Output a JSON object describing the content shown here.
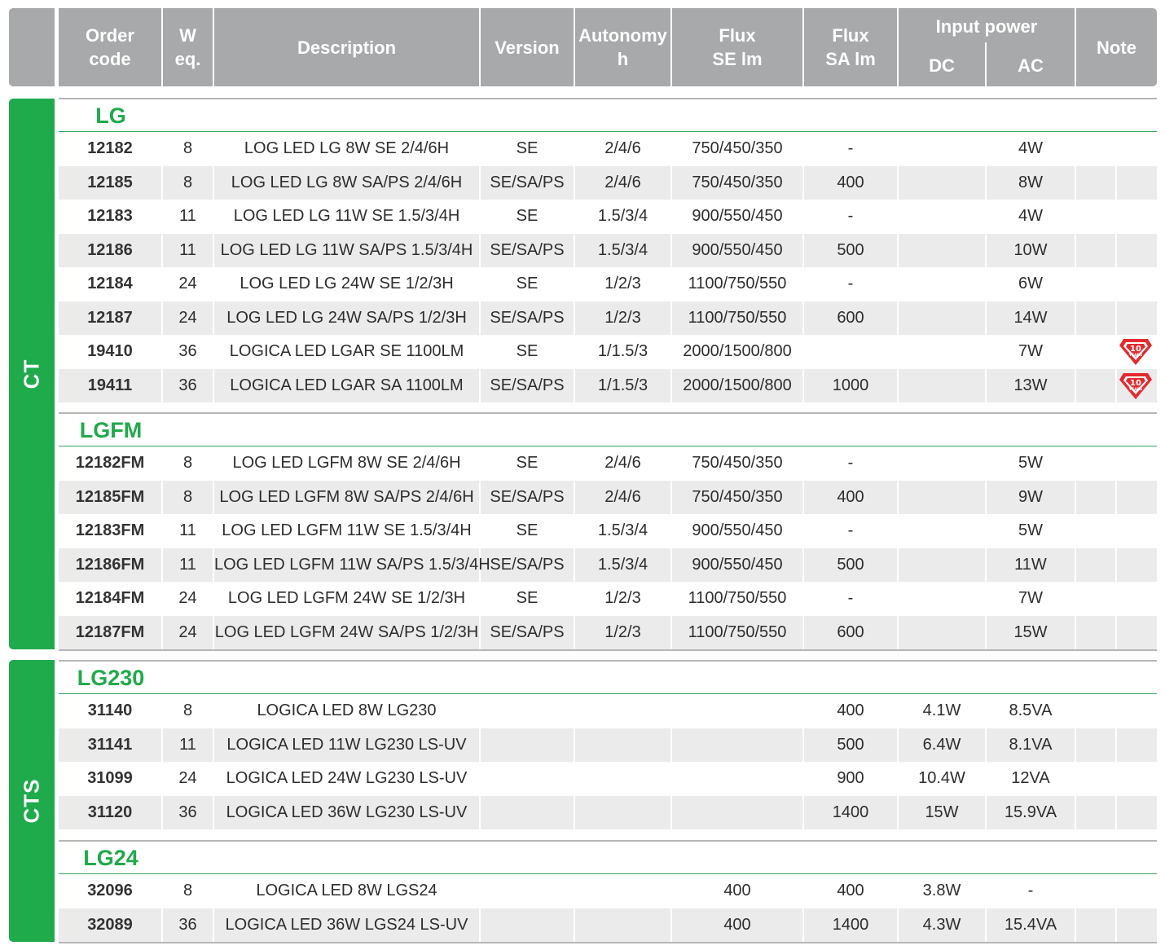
{
  "header": {
    "order_code": "Order\ncode",
    "w_eq": "W\neq.",
    "description": "Description",
    "version": "Version",
    "autonomy": "Autonomy\nh",
    "flux_se": "Flux\nSE lm",
    "flux_sa": "Flux\nSA lm",
    "input_power": "Input power",
    "dc": "DC",
    "ac": "AC",
    "note": "Note"
  },
  "sections": [
    {
      "label": "CT"
    },
    {
      "label": "CTS"
    }
  ],
  "groups": [
    {
      "title": "LG",
      "rows": [
        {
          "code": "12182",
          "w": "8",
          "desc": "LOG LED LG 8W SE 2/4/6H",
          "version": "SE",
          "autonomy": "2/4/6",
          "flux_se": "750/450/350",
          "flux_sa": "-",
          "dc": "",
          "ac": "4W",
          "note": ""
        },
        {
          "code": "12185",
          "w": "8",
          "desc": "LOG LED LG 8W SA/PS 2/4/6H",
          "version": "SE/SA/PS",
          "autonomy": "2/4/6",
          "flux_se": "750/450/350",
          "flux_sa": "400",
          "dc": "",
          "ac": "8W",
          "note": ""
        },
        {
          "code": "12183",
          "w": "11",
          "desc": "LOG LED LG 11W SE 1.5/3/4H",
          "version": "SE",
          "autonomy": "1.5/3/4",
          "flux_se": "900/550/450",
          "flux_sa": "-",
          "dc": "",
          "ac": "4W",
          "note": ""
        },
        {
          "code": "12186",
          "w": "11",
          "desc": "LOG LED LG 11W SA/PS 1.5/3/4H",
          "version": "SE/SA/PS",
          "autonomy": "1.5/3/4",
          "flux_se": "900/550/450",
          "flux_sa": "500",
          "dc": "",
          "ac": "10W",
          "note": ""
        },
        {
          "code": "12184",
          "w": "24",
          "desc": "LOG LED LG 24W SE 1/2/3H",
          "version": "SE",
          "autonomy": "1/2/3",
          "flux_se": "1100/750/550",
          "flux_sa": "-",
          "dc": "",
          "ac": "6W",
          "note": ""
        },
        {
          "code": "12187",
          "w": "24",
          "desc": "LOG LED LG 24W SA/PS 1/2/3H",
          "version": "SE/SA/PS",
          "autonomy": "1/2/3",
          "flux_se": "1100/750/550",
          "flux_sa": "600",
          "dc": "",
          "ac": "14W",
          "note": ""
        },
        {
          "code": "19410",
          "w": "36",
          "desc": "LOGICA LED LGAR SE 1100LM",
          "version": "SE",
          "autonomy": "1/1.5/3",
          "flux_se": "2000/1500/800",
          "flux_sa": "",
          "dc": "",
          "ac": "7W",
          "note": "10-years-badge"
        },
        {
          "code": "19411",
          "w": "36",
          "desc": "LOGICA LED LGAR SA 1100LM",
          "version": "SE/SA/PS",
          "autonomy": "1/1.5/3",
          "flux_se": "2000/1500/800",
          "flux_sa": "1000",
          "dc": "",
          "ac": "13W",
          "note": "10-years-badge"
        }
      ]
    },
    {
      "title": "LGFM",
      "rows": [
        {
          "code": "12182FM",
          "w": "8",
          "desc": "LOG LED LGFM 8W SE 2/4/6H",
          "version": "SE",
          "autonomy": "2/4/6",
          "flux_se": "750/450/350",
          "flux_sa": "-",
          "dc": "",
          "ac": "5W",
          "note": ""
        },
        {
          "code": "12185FM",
          "w": "8",
          "desc": "LOG LED LGFM 8W SA/PS 2/4/6H",
          "version": "SE/SA/PS",
          "autonomy": "2/4/6",
          "flux_se": "750/450/350",
          "flux_sa": "400",
          "dc": "",
          "ac": "9W",
          "note": ""
        },
        {
          "code": "12183FM",
          "w": "11",
          "desc": "LOG LED LGFM 11W SE 1.5/3/4H",
          "version": "SE",
          "autonomy": "1.5/3/4",
          "flux_se": "900/550/450",
          "flux_sa": "-",
          "dc": "",
          "ac": "5W",
          "note": ""
        },
        {
          "code": "12186FM",
          "w": "11",
          "desc": "LOG LED LGFM 11W SA/PS 1.5/3/4H",
          "version": "SE/SA/PS",
          "autonomy": "1.5/3/4",
          "flux_se": "900/550/450",
          "flux_sa": "500",
          "dc": "",
          "ac": "11W",
          "note": ""
        },
        {
          "code": "12184FM",
          "w": "24",
          "desc": "LOG LED LGFM 24W SE 1/2/3H",
          "version": "SE",
          "autonomy": "1/2/3",
          "flux_se": "1100/750/550",
          "flux_sa": "-",
          "dc": "",
          "ac": "7W",
          "note": ""
        },
        {
          "code": "12187FM",
          "w": "24",
          "desc": "LOG LED LGFM 24W SA/PS 1/2/3H",
          "version": "SE/SA/PS",
          "autonomy": "1/2/3",
          "flux_se": "1100/750/550",
          "flux_sa": "600",
          "dc": "",
          "ac": "15W",
          "note": ""
        }
      ]
    },
    {
      "title": "LG230",
      "rows": [
        {
          "code": "31140",
          "w": "8",
          "desc": "LOGICA LED 8W LG230",
          "version": "",
          "autonomy": "",
          "flux_se": "",
          "flux_sa": "400",
          "dc": "4.1W",
          "ac": "8.5VA",
          "note": ""
        },
        {
          "code": "31141",
          "w": "11",
          "desc": "LOGICA LED 11W LG230 LS-UV",
          "version": "",
          "autonomy": "",
          "flux_se": "",
          "flux_sa": "500",
          "dc": "6.4W",
          "ac": "8.1VA",
          "note": ""
        },
        {
          "code": "31099",
          "w": "24",
          "desc": "LOGICA LED 24W LG230 LS-UV",
          "version": "",
          "autonomy": "",
          "flux_se": "",
          "flux_sa": "900",
          "dc": "10.4W",
          "ac": "12VA",
          "note": ""
        },
        {
          "code": "31120",
          "w": "36",
          "desc": "LOGICA LED 36W LG230 LS-UV",
          "version": "",
          "autonomy": "",
          "flux_se": "",
          "flux_sa": "1400",
          "dc": "15W",
          "ac": "15.9VA",
          "note": ""
        }
      ]
    },
    {
      "title": "LG24",
      "rows": [
        {
          "code": "32096",
          "w": "8",
          "desc": "LOGICA LED 8W LGS24",
          "version": "",
          "autonomy": "",
          "flux_se": "400",
          "flux_sa": "400",
          "dc": "3.8W",
          "ac": "-",
          "note": ""
        },
        {
          "code": "32089",
          "w": "36",
          "desc": "LOGICA LED 36W LGS24 LS-UV",
          "version": "",
          "autonomy": "",
          "flux_se": "400",
          "flux_sa": "1400",
          "dc": "4.3W",
          "ac": "15.4VA",
          "note": ""
        }
      ]
    }
  ],
  "badge": {
    "number": "10",
    "caption": "YEARS",
    "color": "#e52a2f"
  },
  "colors": {
    "green": "#1faa4b",
    "header_gray": "#a7a9ab",
    "row_shade": "#ebebec"
  }
}
